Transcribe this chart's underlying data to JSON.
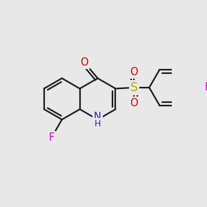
{
  "background_color": "#e8e8e8",
  "bond_color": "#1a1a1a",
  "bond_width": 1.6,
  "atoms": {
    "N": {
      "color": "#2020cc"
    },
    "O": {
      "color": "#cc0000"
    },
    "S": {
      "color": "#bbaa00"
    },
    "F_ring": {
      "color": "#cc00cc"
    },
    "F_ph": {
      "color": "#cc00cc"
    }
  },
  "figsize": [
    3.0,
    3.0
  ],
  "dpi": 100,
  "xlim": [
    0,
    300
  ],
  "ylim": [
    0,
    300
  ]
}
